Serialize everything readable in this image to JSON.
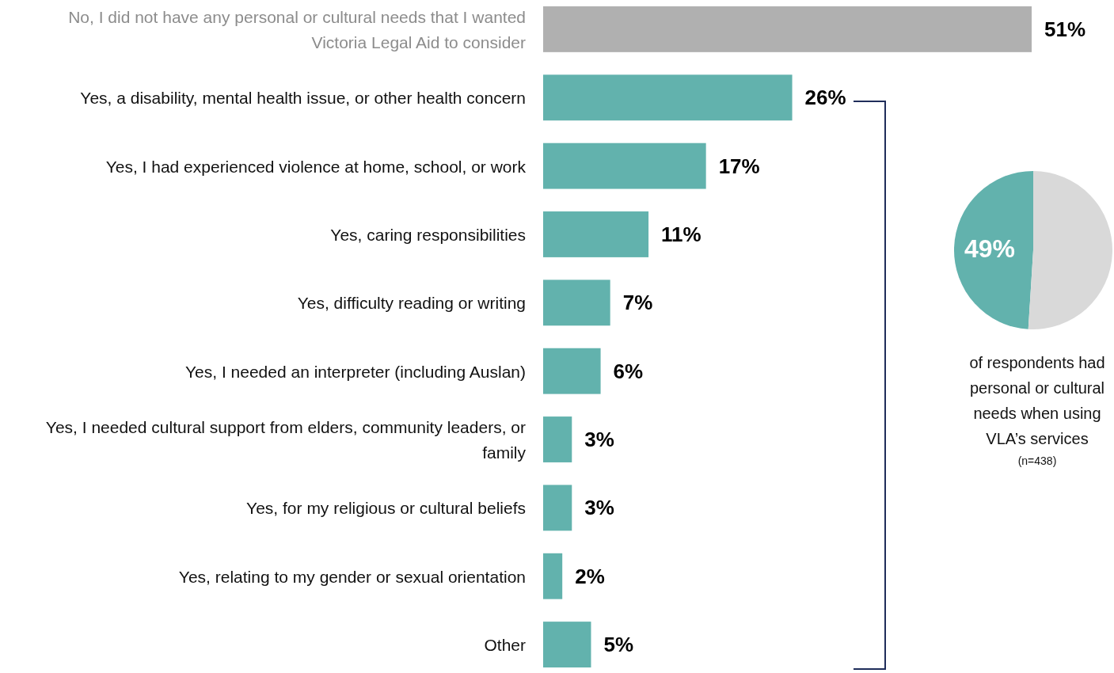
{
  "chart_data": [
    {
      "type": "bar",
      "orientation": "horizontal",
      "data_labels": false,
      "categories": [
        "No, I did not have any personal or cultural needs that I wanted Victoria Legal Aid to consider",
        "Yes, a disability, mental health issue, or other health concern",
        "Yes, I had experienced violence at home, school, or work",
        "Yes, caring responsibilities",
        "Yes, difficulty reading or writing",
        "Yes, I needed an interpreter (including Auslan)",
        "Yes, I needed cultural support from elders, community leaders, or family",
        "Yes, for my religious or cultural beliefs",
        "Yes, relating to my gender or sexual orientation",
        "Other"
      ],
      "values": [
        51,
        26,
        17,
        11,
        7,
        6,
        3,
        3,
        2,
        5
      ],
      "value_labels": [
        "51%",
        "26%",
        "17%",
        "11%",
        "7%",
        "6%",
        "3%",
        "3%",
        "2%",
        "5%"
      ],
      "colors": [
        "#b0b0b0",
        "#62b2ad",
        "#62b2ad",
        "#62b2ad",
        "#62b2ad",
        "#62b2ad",
        "#62b2ad",
        "#62b2ad",
        "#62b2ad",
        "#62b2ad"
      ]
    },
    {
      "type": "pie",
      "categories": [
        null,
        null
      ],
      "values": [
        49,
        51
      ],
      "colors": [
        "#62b2ad",
        "#d9d9d9"
      ],
      "value_labels": [
        "49%",
        null
      ],
      "annotations": [
        "of respondents had personal or cultural needs when using VLA’s services",
        "(n=438)"
      ]
    }
  ]
}
